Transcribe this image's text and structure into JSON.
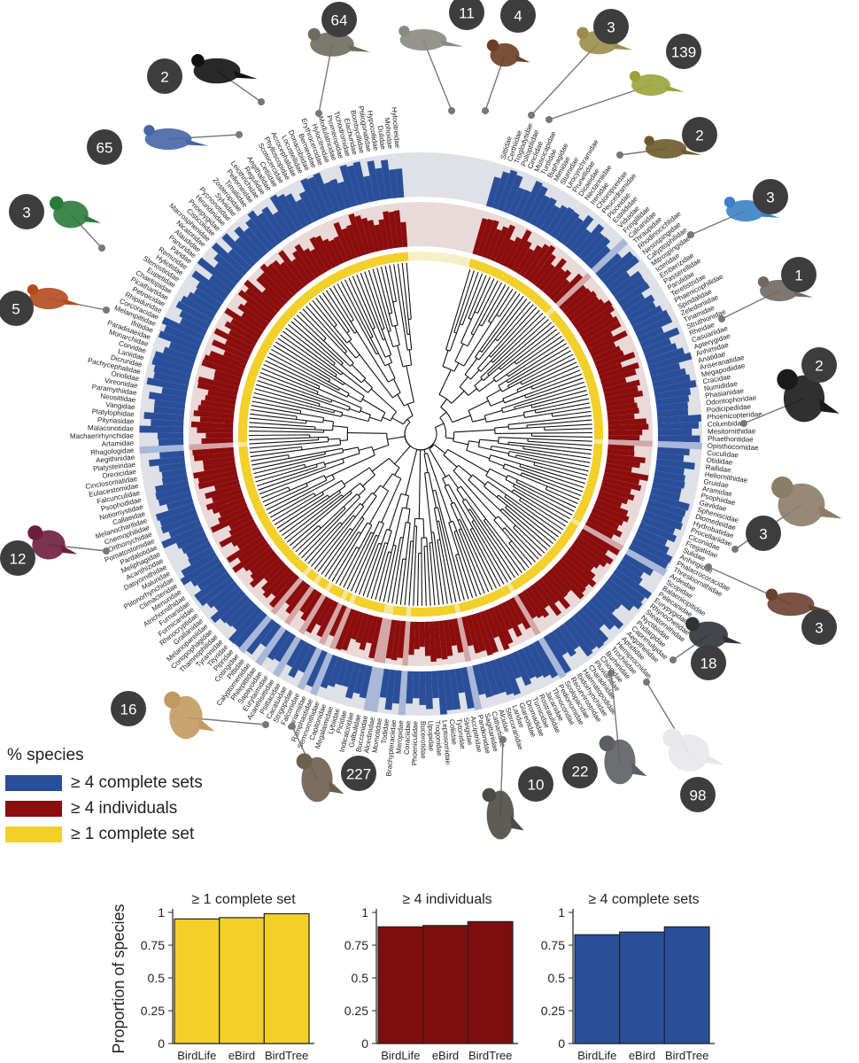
{
  "legend": {
    "title": "% species",
    "items": [
      {
        "label": "≥ 4 complete sets",
        "color": "#2a4f9a"
      },
      {
        "label": "≥ 4 individuals",
        "color": "#8b0d0d"
      },
      {
        "label": "≥ 1 complete set",
        "color": "#f2d028"
      }
    ]
  },
  "families": [
    "Sittidae",
    "Certhiidae",
    "Troglodytidae",
    "Polioptilidae",
    "Cinclidae",
    "Muscicapidae",
    "Turdidae",
    "Buphagidae",
    "Mimidae",
    "Sturnidae",
    "Urocynchramidae",
    "Prunellidae",
    "Dicaeidae",
    "Nectariniidae",
    "Irenidae",
    "Chloropseidae",
    "Peucedramidae",
    "Ploceidae",
    "Estrildidae",
    "Viduidae",
    "Fringillidae",
    "Calcariidae",
    "Thraupidae",
    "Rhodinocichlidae",
    "Nesospingidae",
    "Calyptophilidae",
    "Mitrospingidae",
    "Icteridae",
    "Emberizidae",
    "Passerellidae",
    "Parulidae",
    "Teretistridae",
    "Phaenicophilidae",
    "Spindalidae",
    "Zeledoniidae",
    "Tinamidae",
    "Struthionidae",
    "Rheidae",
    "Casuariidae",
    "Apterygidae",
    "Anhimidae",
    "Anatidae",
    "Anseranatidae",
    "Megapodiidae",
    "Cracidae",
    "Numididae",
    "Phasianidae",
    "Odontophoridae",
    "Podicipedidae",
    "Phoenicopteridae",
    "Columbidae",
    "Mesitornithidae",
    "Phaethontidae",
    "Opisthocomidae",
    "Cuculidae",
    "Otididae",
    "Rallidae",
    "Heliornithidae",
    "Gruidae",
    "Aramidae",
    "Psophiidae",
    "Gaviidae",
    "Spheniscidae",
    "Diomedeidae",
    "Hydrobatidae",
    "Procellariidae",
    "Ciconiidae",
    "Fregatidae",
    "Sulidae",
    "Anhingidae",
    "Phalacrocoracidae",
    "Threskiornithidae",
    "Ardeidae",
    "Scopidae",
    "Balaenicipitidae",
    "Pelecanidae",
    "Eurypygidae",
    "Rhynochetidae",
    "Steatornithidae",
    "Nyctibiidae",
    "Podargidae",
    "Caprimulgidae",
    "Aegothelidae",
    "Apodidae",
    "Hemiprocnidae",
    "Trochilidae",
    "Burhinidae",
    "Chionidae",
    "Pluvianidae",
    "Charadriidae",
    "Haematopodidae",
    "Ibidorhynchidae",
    "Recurvirostridae",
    "Scolopacidae",
    "Pedionomidae",
    "Thinocoridae",
    "Jacanidae",
    "Rostratulidae",
    "Turnicidae",
    "Dromadidae",
    "Glareolidae",
    "Laridae",
    "Stercorariidae",
    "Alcidae",
    "Cathartidae",
    "Sagittariidae",
    "Pandionidae",
    "Accipitridae",
    "Strigidae",
    "Tytonidae",
    "Coliidae",
    "Leptosomidae",
    "Trogonidae",
    "Upupidae",
    "Bucerotidae",
    "Phoeniculidae",
    "Coraciidae",
    "Meropidae",
    "Brachypteraciidae",
    "Todidae",
    "Momotidae",
    "Alcedinidae",
    "Bucconidae",
    "Galbulidae",
    "Indicatoridae",
    "Picidae",
    "Lybiidae",
    "Megalaimidae",
    "Capitonidae",
    "Semnornithidae",
    "Ramphastidae",
    "Cariamidae",
    "Falconidae",
    "Strigopidae",
    "Cacatuidae",
    "Psittacidae",
    "Acanthisittidae",
    "Eurylaimidae",
    "Sapayoidae",
    "Philepittidae",
    "Calyptomenidae",
    "Pittidae",
    "Cotingidae",
    "Pipridae",
    "Tityridae",
    "Tyrannidae",
    "Thamnophilidae",
    "Conopophagidae",
    "Melanopareiidae",
    "Grallariidae",
    "Rhinocryptidae",
    "Formicariidae",
    "Furnariidae",
    "Atrichornithidae",
    "Menuridae",
    "Climacteridae",
    "Ptilonorhynchidae",
    "Maluridae",
    "Dasyornithidae",
    "Acanthizidae",
    "Meliphagidae",
    "Pardalotidae",
    "Pomatostomidae",
    "Orthonychidae",
    "Cnemophilidae",
    "Melanocharitidae",
    "Callaeidae",
    "Notiomystidae",
    "Psophodidae",
    "Falcunculidae",
    "Eulacestomidae",
    "Cinclosomatidae",
    "Oreoicidae",
    "Platysteiridae",
    "Aegithinidae",
    "Rhagologidae",
    "Artamidae",
    "Machaerirhynchidae",
    "Malaconotidae",
    "Pityriasidae",
    "Platylophidae",
    "Vangidae",
    "Neosittidae",
    "Paramythiidae",
    "Vireonidae",
    "Oriolidae",
    "Pachycephalidae",
    "Dicruridae",
    "Laniidae",
    "Corvidae",
    "Monarchidae",
    "Paradisaeidae",
    "Ifritidae",
    "Melampittidae",
    "Corcoracidae",
    "Rhipiduridae",
    "Petroicidae",
    "Picathartidae",
    "Chaetopidae",
    "Eupetidae",
    "Stenostiridae",
    "Hyliotidae",
    "Remizidae",
    "Paridae",
    "Panuridae",
    "Alaudidae",
    "Nicatoridae",
    "Macrosphenidae",
    "Cisticolidae",
    "Pnoepygidae",
    "Hirundinidae",
    "Pycnonotidae",
    "Sylviidae",
    "Zosteropidae",
    "Timaliidae",
    "Pellorneidae",
    "Leiothrichidae",
    "Regulidae",
    "Aegithalidae",
    "Cettiidae",
    "Scotocercidae",
    "Phylloscopidae",
    "Acrocephalidae",
    "Locustellidae",
    "Donacobiidae",
    "Bernieridae",
    "Erythrocercidae",
    "Hylocitreidae",
    "Modulatricidae",
    "Promeropidae",
    "Tichodromidae",
    "Elachuridae",
    "Bombycillidae",
    "Ptiliogonatidae",
    "Hypocoliidae",
    "Dulidae",
    "Mohoidae",
    "Hylocitreidae"
  ],
  "bird_counts": [
    "64",
    "11",
    "4",
    "3",
    "139",
    "2",
    "3",
    "1",
    "2",
    "3",
    "3",
    "18",
    "98",
    "22",
    "10",
    "227",
    "16",
    "12",
    "5",
    "3",
    "65",
    "2"
  ],
  "bar_panels": [
    {
      "title": "≥ 1 complete set",
      "color": "#f2d028",
      "categories": [
        "BirdLife",
        "eBird",
        "BirdTree"
      ],
      "values": [
        0.95,
        0.96,
        0.99
      ]
    },
    {
      "title": "≥ 4 individuals",
      "color": "#7f0d0d",
      "categories": [
        "BirdLife",
        "eBird",
        "BirdTree"
      ],
      "values": [
        0.89,
        0.9,
        0.93
      ]
    },
    {
      "title": "≥ 4 complete sets",
      "color": "#2a4f9a",
      "categories": [
        "BirdLife",
        "eBird",
        "BirdTree"
      ],
      "values": [
        0.83,
        0.85,
        0.89
      ]
    }
  ],
  "chart_data": {
    "type": "bar",
    "categories": [
      "BirdLife",
      "eBird",
      "BirdTree"
    ],
    "ylabel": "Proportion of species",
    "ylim": [
      0,
      1
    ],
    "yticks": [
      "0",
      "0.25",
      "0.5",
      "0.75",
      "1"
    ],
    "series": [
      {
        "name": "≥ 1 complete set",
        "values": [
          0.95,
          0.96,
          0.99
        ]
      },
      {
        "name": "≥ 4 individuals",
        "values": [
          0.89,
          0.9,
          0.93
        ]
      },
      {
        "name": "≥ 4 complete sets",
        "values": [
          0.83,
          0.85,
          0.89
        ]
      }
    ]
  }
}
